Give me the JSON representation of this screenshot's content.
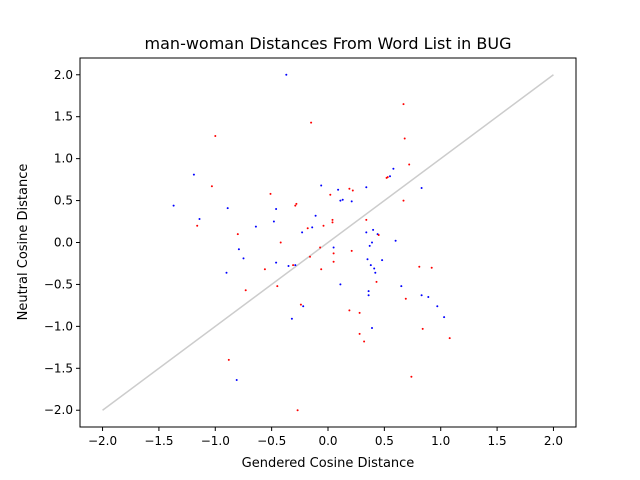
{
  "chart_data": {
    "type": "scatter",
    "title": "man-woman Distances From Word List in BUG",
    "xlabel": "Gendered Cosine Distance",
    "ylabel": "Neutral Cosine Distance",
    "xlim": [
      -2.2,
      2.2
    ],
    "ylim": [
      -2.2,
      2.2
    ],
    "xticks": [
      -2.0,
      -1.5,
      -1.0,
      -0.5,
      0.0,
      0.5,
      1.0,
      1.5,
      2.0
    ],
    "yticks": [
      -2.0,
      -1.5,
      -1.0,
      -0.5,
      0.0,
      0.5,
      1.0,
      1.5,
      2.0
    ],
    "xtick_labels": [
      "−2.0",
      "−1.5",
      "−1.0",
      "−0.5",
      "0.0",
      "0.5",
      "1.0",
      "1.5",
      "2.0"
    ],
    "ytick_labels": [
      "−2.0",
      "−1.5",
      "−1.0",
      "−0.5",
      "0.0",
      "0.5",
      "1.0",
      "1.5",
      "2.0"
    ],
    "grid": false,
    "reference_line": {
      "x": [
        -2.0,
        2.0
      ],
      "y": [
        -2.0,
        2.0
      ],
      "color": "#cccccc"
    },
    "series": [
      {
        "name": "blue",
        "color": "#0000ff",
        "points": [
          [
            -0.37,
            2.0
          ],
          [
            -1.19,
            0.81
          ],
          [
            -1.37,
            0.44
          ],
          [
            -1.14,
            0.28
          ],
          [
            -0.89,
            0.41
          ],
          [
            -0.79,
            -0.08
          ],
          [
            -0.75,
            -0.19
          ],
          [
            -0.64,
            0.19
          ],
          [
            -0.46,
            0.4
          ],
          [
            -0.48,
            0.25
          ],
          [
            -0.9,
            -0.36
          ],
          [
            -0.46,
            -0.24
          ],
          [
            -0.35,
            -0.28
          ],
          [
            -0.29,
            -0.27
          ],
          [
            -0.22,
            -0.76
          ],
          [
            -0.32,
            -0.91
          ],
          [
            -0.81,
            -1.64
          ],
          [
            0.05,
            -0.06
          ],
          [
            -0.11,
            0.32
          ],
          [
            -0.06,
            0.68
          ],
          [
            -0.14,
            0.18
          ],
          [
            -0.23,
            0.12
          ],
          [
            0.09,
            0.63
          ],
          [
            0.11,
            0.5
          ],
          [
            0.13,
            0.51
          ],
          [
            0.21,
            0.49
          ],
          [
            0.34,
            0.66
          ],
          [
            0.34,
            0.12
          ],
          [
            0.4,
            0.15
          ],
          [
            0.44,
            0.1
          ],
          [
            0.37,
            -0.04
          ],
          [
            0.39,
            0.0
          ],
          [
            0.35,
            -0.2
          ],
          [
            0.38,
            -0.27
          ],
          [
            0.41,
            -0.31
          ],
          [
            0.42,
            -0.36
          ],
          [
            0.48,
            -0.21
          ],
          [
            0.11,
            -0.5
          ],
          [
            0.36,
            -0.58
          ],
          [
            0.36,
            -0.63
          ],
          [
            0.39,
            -1.02
          ],
          [
            0.58,
            0.88
          ],
          [
            0.55,
            0.79
          ],
          [
            0.6,
            0.02
          ],
          [
            0.65,
            -0.52
          ],
          [
            0.83,
            0.65
          ],
          [
            0.83,
            -0.63
          ],
          [
            0.89,
            -0.65
          ],
          [
            0.97,
            -0.76
          ],
          [
            1.03,
            -0.89
          ]
        ]
      },
      {
        "name": "red",
        "color": "#ff0000",
        "points": [
          [
            0.67,
            1.65
          ],
          [
            -1.0,
            1.27
          ],
          [
            -0.15,
            1.43
          ],
          [
            -1.03,
            0.67
          ],
          [
            -1.16,
            0.2
          ],
          [
            -0.8,
            0.1
          ],
          [
            -0.51,
            0.58
          ],
          [
            -0.29,
            0.44
          ],
          [
            -0.28,
            0.46
          ],
          [
            -0.42,
            0.0
          ],
          [
            -0.56,
            -0.32
          ],
          [
            -0.45,
            -0.52
          ],
          [
            -0.73,
            -0.57
          ],
          [
            -0.31,
            -0.27
          ],
          [
            -0.24,
            -0.74
          ],
          [
            -0.88,
            -1.4
          ],
          [
            -0.27,
            -2.0
          ],
          [
            -0.18,
            0.17
          ],
          [
            -0.16,
            -0.17
          ],
          [
            -0.07,
            -0.06
          ],
          [
            -0.06,
            -0.32
          ],
          [
            -0.04,
            0.2
          ],
          [
            0.02,
            0.57
          ],
          [
            0.04,
            0.24
          ],
          [
            0.04,
            0.27
          ],
          [
            0.05,
            -0.23
          ],
          [
            0.05,
            -0.13
          ],
          [
            0.19,
            0.64
          ],
          [
            0.22,
            0.62
          ],
          [
            0.21,
            -0.1
          ],
          [
            0.34,
            0.27
          ],
          [
            0.45,
            0.09
          ],
          [
            0.43,
            -0.47
          ],
          [
            0.52,
            0.77
          ],
          [
            0.53,
            0.78
          ],
          [
            0.19,
            -0.81
          ],
          [
            0.28,
            -0.84
          ],
          [
            0.28,
            -1.09
          ],
          [
            0.32,
            -1.18
          ],
          [
            0.67,
            0.5
          ],
          [
            0.68,
            1.24
          ],
          [
            0.72,
            0.93
          ],
          [
            0.69,
            -0.67
          ],
          [
            0.81,
            -0.29
          ],
          [
            0.84,
            -1.03
          ],
          [
            0.92,
            -0.3
          ],
          [
            0.74,
            -1.6
          ],
          [
            1.08,
            -1.14
          ]
        ]
      }
    ]
  }
}
